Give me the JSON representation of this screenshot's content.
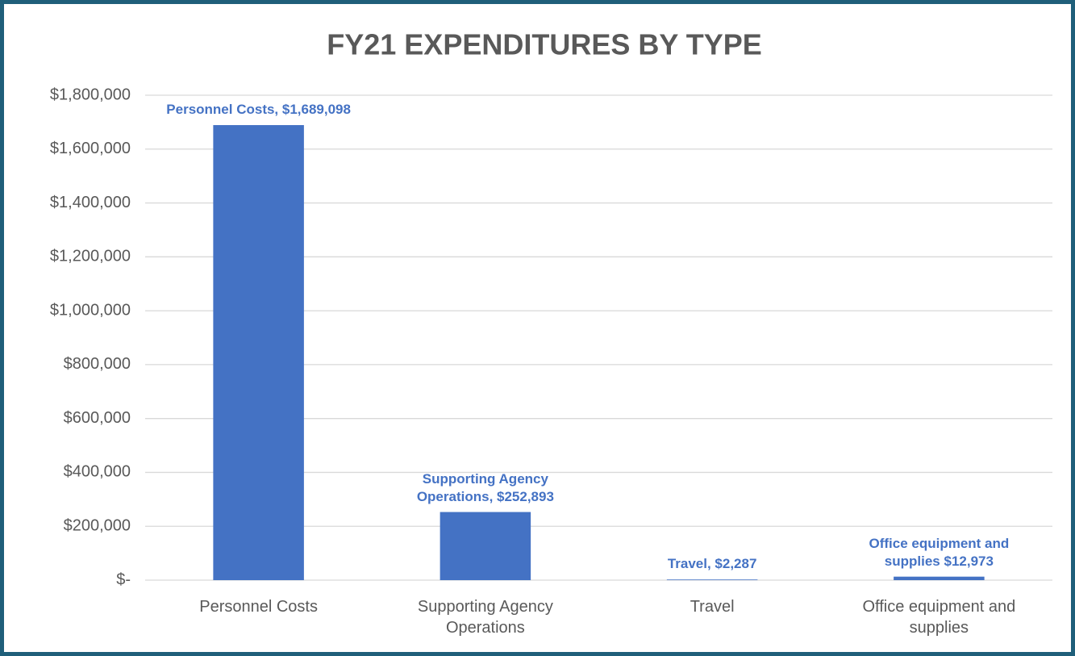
{
  "chart_data": {
    "type": "bar",
    "title": "FY21 EXPENDITURES BY TYPE",
    "categories": [
      "Personnel Costs",
      "Supporting Agency Operations",
      "Travel",
      "Office equipment and supplies"
    ],
    "values": [
      1689098,
      252893,
      2287,
      12973
    ],
    "value_labels": [
      "Personnel Costs, $1,689,098",
      "Supporting Agency Operations, $252,893",
      "Travel, $2,287",
      "Office equipment and supplies $12,973"
    ],
    "color": "#4472c4",
    "ylim": [
      0,
      1800000
    ],
    "yticks": [
      {
        "value": 0,
        "label": "$-"
      },
      {
        "value": 200000,
        "label": "$200,000"
      },
      {
        "value": 400000,
        "label": "$400,000"
      },
      {
        "value": 600000,
        "label": "$600,000"
      },
      {
        "value": 800000,
        "label": "$800,000"
      },
      {
        "value": 1000000,
        "label": "$1,000,000"
      },
      {
        "value": 1200000,
        "label": "$1,200,000"
      },
      {
        "value": 1400000,
        "label": "$1,400,000"
      },
      {
        "value": 1600000,
        "label": "$1,600,000"
      },
      {
        "value": 1800000,
        "label": "$1,800,000"
      }
    ],
    "grid": true
  }
}
